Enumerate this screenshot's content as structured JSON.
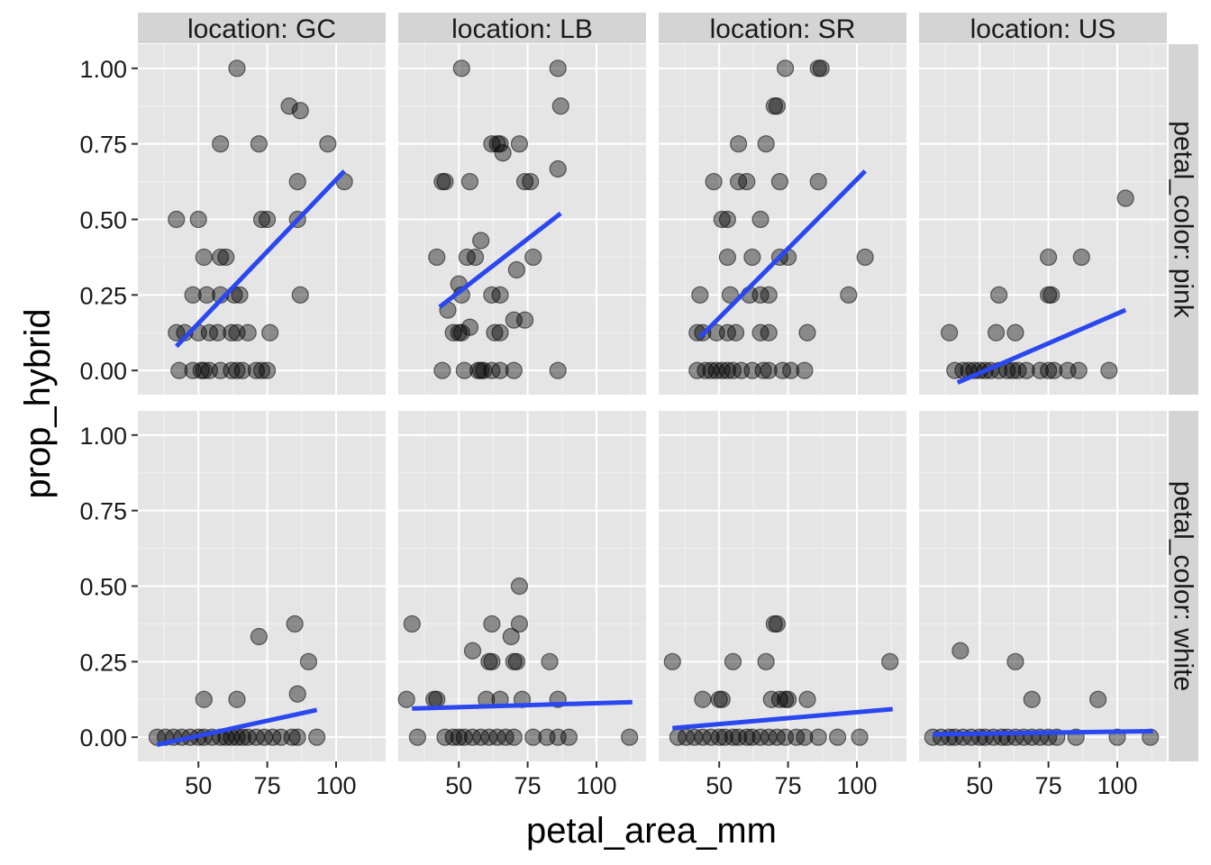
{
  "chart_data": {
    "type": "scatter",
    "xlabel": "petal_area_mm",
    "ylabel": "prop_hybrid",
    "col_facets": [
      "location: GC",
      "location: LB",
      "location: SR",
      "location: US"
    ],
    "row_facets": [
      "petal_color: pink",
      "petal_color: white"
    ],
    "x_ticks": [
      50,
      75,
      100
    ],
    "y_ticks": [
      0.0,
      0.25,
      0.5,
      0.75,
      1.0
    ],
    "x_tick_labels": [
      "50",
      "75",
      "100"
    ],
    "y_tick_labels": [
      "0.00",
      "0.25",
      "0.50",
      "0.75",
      "1.00"
    ],
    "xlim": [
      28,
      118
    ],
    "ylim": [
      -0.08,
      1.08
    ],
    "grid": true,
    "colors": {
      "point": "#000000",
      "line": "#2a47f0",
      "panel": "#e5e5e5",
      "strip": "#d4d4d4"
    },
    "panels": [
      {
        "row": 0,
        "col": 0,
        "fit": [
          [
            42,
            0.08
          ],
          [
            103,
            0.66
          ]
        ],
        "points": [
          [
            64,
            1.0
          ],
          [
            83,
            0.875
          ],
          [
            87,
            0.86
          ],
          [
            58,
            0.75
          ],
          [
            72,
            0.75
          ],
          [
            97,
            0.75
          ],
          [
            86,
            0.625
          ],
          [
            103,
            0.625
          ],
          [
            42,
            0.5
          ],
          [
            50,
            0.5
          ],
          [
            73,
            0.5
          ],
          [
            75,
            0.5
          ],
          [
            86,
            0.5
          ],
          [
            52,
            0.375
          ],
          [
            58,
            0.375
          ],
          [
            60,
            0.375
          ],
          [
            48,
            0.25
          ],
          [
            53,
            0.25
          ],
          [
            58,
            0.25
          ],
          [
            63,
            0.25
          ],
          [
            65,
            0.25
          ],
          [
            87,
            0.25
          ],
          [
            42,
            0.125
          ],
          [
            45,
            0.125
          ],
          [
            50,
            0.125
          ],
          [
            54,
            0.125
          ],
          [
            57,
            0.125
          ],
          [
            62,
            0.125
          ],
          [
            64,
            0.125
          ],
          [
            68,
            0.125
          ],
          [
            76,
            0.125
          ],
          [
            43,
            0.0
          ],
          [
            48,
            0.0
          ],
          [
            51,
            0.0
          ],
          [
            52,
            0.0
          ],
          [
            54,
            0.0
          ],
          [
            58,
            0.0
          ],
          [
            62,
            0.0
          ],
          [
            64,
            0.0
          ],
          [
            66,
            0.0
          ],
          [
            71,
            0.0
          ],
          [
            73,
            0.0
          ],
          [
            75,
            0.0
          ]
        ]
      },
      {
        "row": 0,
        "col": 1,
        "fit": [
          [
            43,
            0.21
          ],
          [
            87,
            0.52
          ]
        ],
        "points": [
          [
            51,
            1.0
          ],
          [
            86,
            1.0
          ],
          [
            87,
            0.875
          ],
          [
            62,
            0.75
          ],
          [
            64,
            0.75
          ],
          [
            65,
            0.75
          ],
          [
            72,
            0.75
          ],
          [
            66,
            0.72
          ],
          [
            44,
            0.625
          ],
          [
            45,
            0.625
          ],
          [
            54,
            0.625
          ],
          [
            74,
            0.625
          ],
          [
            76,
            0.625
          ],
          [
            86,
            0.667
          ],
          [
            58,
            0.43
          ],
          [
            42,
            0.375
          ],
          [
            53,
            0.375
          ],
          [
            56,
            0.375
          ],
          [
            77,
            0.375
          ],
          [
            71,
            0.333
          ],
          [
            50,
            0.286
          ],
          [
            51,
            0.25
          ],
          [
            62,
            0.25
          ],
          [
            65,
            0.25
          ],
          [
            46,
            0.2
          ],
          [
            70,
            0.167
          ],
          [
            74,
            0.167
          ],
          [
            54,
            0.143
          ],
          [
            63,
            0.125
          ],
          [
            65,
            0.125
          ],
          [
            48,
            0.125
          ],
          [
            50,
            0.125
          ],
          [
            51,
            0.125
          ],
          [
            44,
            0.0
          ],
          [
            52,
            0.0
          ],
          [
            57,
            0.0
          ],
          [
            58,
            0.0
          ],
          [
            59,
            0.0
          ],
          [
            62,
            0.0
          ],
          [
            65,
            0.0
          ],
          [
            70,
            0.0
          ],
          [
            86,
            0.0
          ]
        ]
      },
      {
        "row": 0,
        "col": 2,
        "fit": [
          [
            43,
            0.11
          ],
          [
            103,
            0.66
          ]
        ],
        "points": [
          [
            74,
            1.0
          ],
          [
            86,
            1.0
          ],
          [
            87,
            1.0
          ],
          [
            70,
            0.875
          ],
          [
            71,
            0.875
          ],
          [
            57,
            0.75
          ],
          [
            67,
            0.75
          ],
          [
            48,
            0.625
          ],
          [
            57,
            0.625
          ],
          [
            60,
            0.625
          ],
          [
            72,
            0.625
          ],
          [
            86,
            0.625
          ],
          [
            51,
            0.5
          ],
          [
            53,
            0.5
          ],
          [
            65,
            0.5
          ],
          [
            53,
            0.375
          ],
          [
            62,
            0.375
          ],
          [
            72,
            0.375
          ],
          [
            75,
            0.375
          ],
          [
            103,
            0.375
          ],
          [
            43,
            0.25
          ],
          [
            54,
            0.25
          ],
          [
            61,
            0.25
          ],
          [
            65,
            0.25
          ],
          [
            68,
            0.25
          ],
          [
            97,
            0.25
          ],
          [
            42,
            0.125
          ],
          [
            44,
            0.125
          ],
          [
            49,
            0.125
          ],
          [
            53,
            0.125
          ],
          [
            56,
            0.125
          ],
          [
            65,
            0.125
          ],
          [
            68,
            0.125
          ],
          [
            82,
            0.125
          ],
          [
            42,
            0.0
          ],
          [
            45,
            0.0
          ],
          [
            47,
            0.0
          ],
          [
            49,
            0.0
          ],
          [
            51,
            0.0
          ],
          [
            53,
            0.0
          ],
          [
            55,
            0.0
          ],
          [
            58,
            0.0
          ],
          [
            62,
            0.0
          ],
          [
            66,
            0.0
          ],
          [
            68,
            0.0
          ],
          [
            73,
            0.0
          ],
          [
            76,
            0.0
          ],
          [
            81,
            0.0
          ]
        ]
      },
      {
        "row": 0,
        "col": 3,
        "fit": [
          [
            42,
            -0.04
          ],
          [
            103,
            0.2
          ]
        ],
        "points": [
          [
            103,
            0.57
          ],
          [
            75,
            0.375
          ],
          [
            87,
            0.375
          ],
          [
            75,
            0.25
          ],
          [
            76,
            0.25
          ],
          [
            57,
            0.25
          ],
          [
            39,
            0.125
          ],
          [
            56,
            0.125
          ],
          [
            63,
            0.125
          ],
          [
            41,
            0.0
          ],
          [
            44,
            0.0
          ],
          [
            46,
            0.0
          ],
          [
            48,
            0.0
          ],
          [
            50,
            0.0
          ],
          [
            52,
            0.0
          ],
          [
            54,
            0.0
          ],
          [
            57,
            0.0
          ],
          [
            60,
            0.0
          ],
          [
            62,
            0.0
          ],
          [
            64,
            0.0
          ],
          [
            67,
            0.0
          ],
          [
            72,
            0.0
          ],
          [
            75,
            0.0
          ],
          [
            77,
            0.0
          ],
          [
            82,
            0.0
          ],
          [
            86,
            0.0
          ],
          [
            97,
            0.0
          ]
        ]
      },
      {
        "row": 1,
        "col": 0,
        "fit": [
          [
            35,
            -0.025
          ],
          [
            93,
            0.09
          ]
        ],
        "points": [
          [
            72,
            0.333
          ],
          [
            85,
            0.375
          ],
          [
            90,
            0.25
          ],
          [
            86,
            0.143
          ],
          [
            52,
            0.125
          ],
          [
            64,
            0.125
          ],
          [
            35,
            0.0
          ],
          [
            38,
            0.0
          ],
          [
            41,
            0.0
          ],
          [
            44,
            0.0
          ],
          [
            47,
            0.0
          ],
          [
            50,
            0.0
          ],
          [
            52,
            0.0
          ],
          [
            55,
            0.0
          ],
          [
            58,
            0.0
          ],
          [
            60,
            0.0
          ],
          [
            62,
            0.0
          ],
          [
            64,
            0.0
          ],
          [
            66,
            0.0
          ],
          [
            68,
            0.0
          ],
          [
            71,
            0.0
          ],
          [
            74,
            0.0
          ],
          [
            77,
            0.0
          ],
          [
            80,
            0.0
          ],
          [
            84,
            0.0
          ],
          [
            86,
            0.0
          ],
          [
            93,
            0.0
          ]
        ]
      },
      {
        "row": 1,
        "col": 1,
        "fit": [
          [
            33,
            0.095
          ],
          [
            113,
            0.116
          ]
        ],
        "points": [
          [
            72,
            0.5
          ],
          [
            33,
            0.375
          ],
          [
            62,
            0.375
          ],
          [
            72,
            0.375
          ],
          [
            69,
            0.333
          ],
          [
            55,
            0.286
          ],
          [
            61,
            0.25
          ],
          [
            62,
            0.25
          ],
          [
            70,
            0.25
          ],
          [
            71,
            0.25
          ],
          [
            83,
            0.25
          ],
          [
            31,
            0.125
          ],
          [
            41,
            0.125
          ],
          [
            42,
            0.125
          ],
          [
            60,
            0.125
          ],
          [
            65,
            0.125
          ],
          [
            73,
            0.125
          ],
          [
            86,
            0.125
          ],
          [
            35,
            0.0
          ],
          [
            45,
            0.0
          ],
          [
            48,
            0.0
          ],
          [
            50,
            0.0
          ],
          [
            52,
            0.0
          ],
          [
            55,
            0.0
          ],
          [
            58,
            0.0
          ],
          [
            61,
            0.0
          ],
          [
            64,
            0.0
          ],
          [
            67,
            0.0
          ],
          [
            70,
            0.0
          ],
          [
            77,
            0.0
          ],
          [
            82,
            0.0
          ],
          [
            86,
            0.0
          ],
          [
            90,
            0.0
          ],
          [
            112,
            0.0
          ]
        ]
      },
      {
        "row": 1,
        "col": 2,
        "fit": [
          [
            33,
            0.03
          ],
          [
            113,
            0.093
          ]
        ],
        "points": [
          [
            70,
            0.375
          ],
          [
            71,
            0.375
          ],
          [
            33,
            0.25
          ],
          [
            55,
            0.25
          ],
          [
            67,
            0.25
          ],
          [
            112,
            0.25
          ],
          [
            44,
            0.125
          ],
          [
            50,
            0.125
          ],
          [
            51,
            0.125
          ],
          [
            69,
            0.125
          ],
          [
            72,
            0.125
          ],
          [
            74,
            0.125
          ],
          [
            75,
            0.125
          ],
          [
            82,
            0.125
          ],
          [
            35,
            0.0
          ],
          [
            38,
            0.0
          ],
          [
            41,
            0.0
          ],
          [
            44,
            0.0
          ],
          [
            47,
            0.0
          ],
          [
            50,
            0.0
          ],
          [
            52,
            0.0
          ],
          [
            55,
            0.0
          ],
          [
            57,
            0.0
          ],
          [
            60,
            0.0
          ],
          [
            62,
            0.0
          ],
          [
            65,
            0.0
          ],
          [
            68,
            0.0
          ],
          [
            71,
            0.0
          ],
          [
            74,
            0.0
          ],
          [
            78,
            0.0
          ],
          [
            81,
            0.0
          ],
          [
            86,
            0.0
          ],
          [
            93,
            0.0
          ],
          [
            101,
            0.0
          ]
        ]
      },
      {
        "row": 1,
        "col": 3,
        "fit": [
          [
            33,
            0.01
          ],
          [
            113,
            0.02
          ]
        ],
        "points": [
          [
            43,
            0.286
          ],
          [
            63,
            0.25
          ],
          [
            93,
            0.125
          ],
          [
            69,
            0.125
          ],
          [
            33,
            0.0
          ],
          [
            36,
            0.0
          ],
          [
            39,
            0.0
          ],
          [
            41,
            0.0
          ],
          [
            44,
            0.0
          ],
          [
            47,
            0.0
          ],
          [
            50,
            0.0
          ],
          [
            52,
            0.0
          ],
          [
            55,
            0.0
          ],
          [
            58,
            0.0
          ],
          [
            60,
            0.0
          ],
          [
            63,
            0.0
          ],
          [
            66,
            0.0
          ],
          [
            69,
            0.0
          ],
          [
            72,
            0.0
          ],
          [
            75,
            0.0
          ],
          [
            78,
            0.0
          ],
          [
            85,
            0.0
          ],
          [
            100,
            0.0
          ],
          [
            112,
            0.0
          ]
        ]
      }
    ]
  }
}
